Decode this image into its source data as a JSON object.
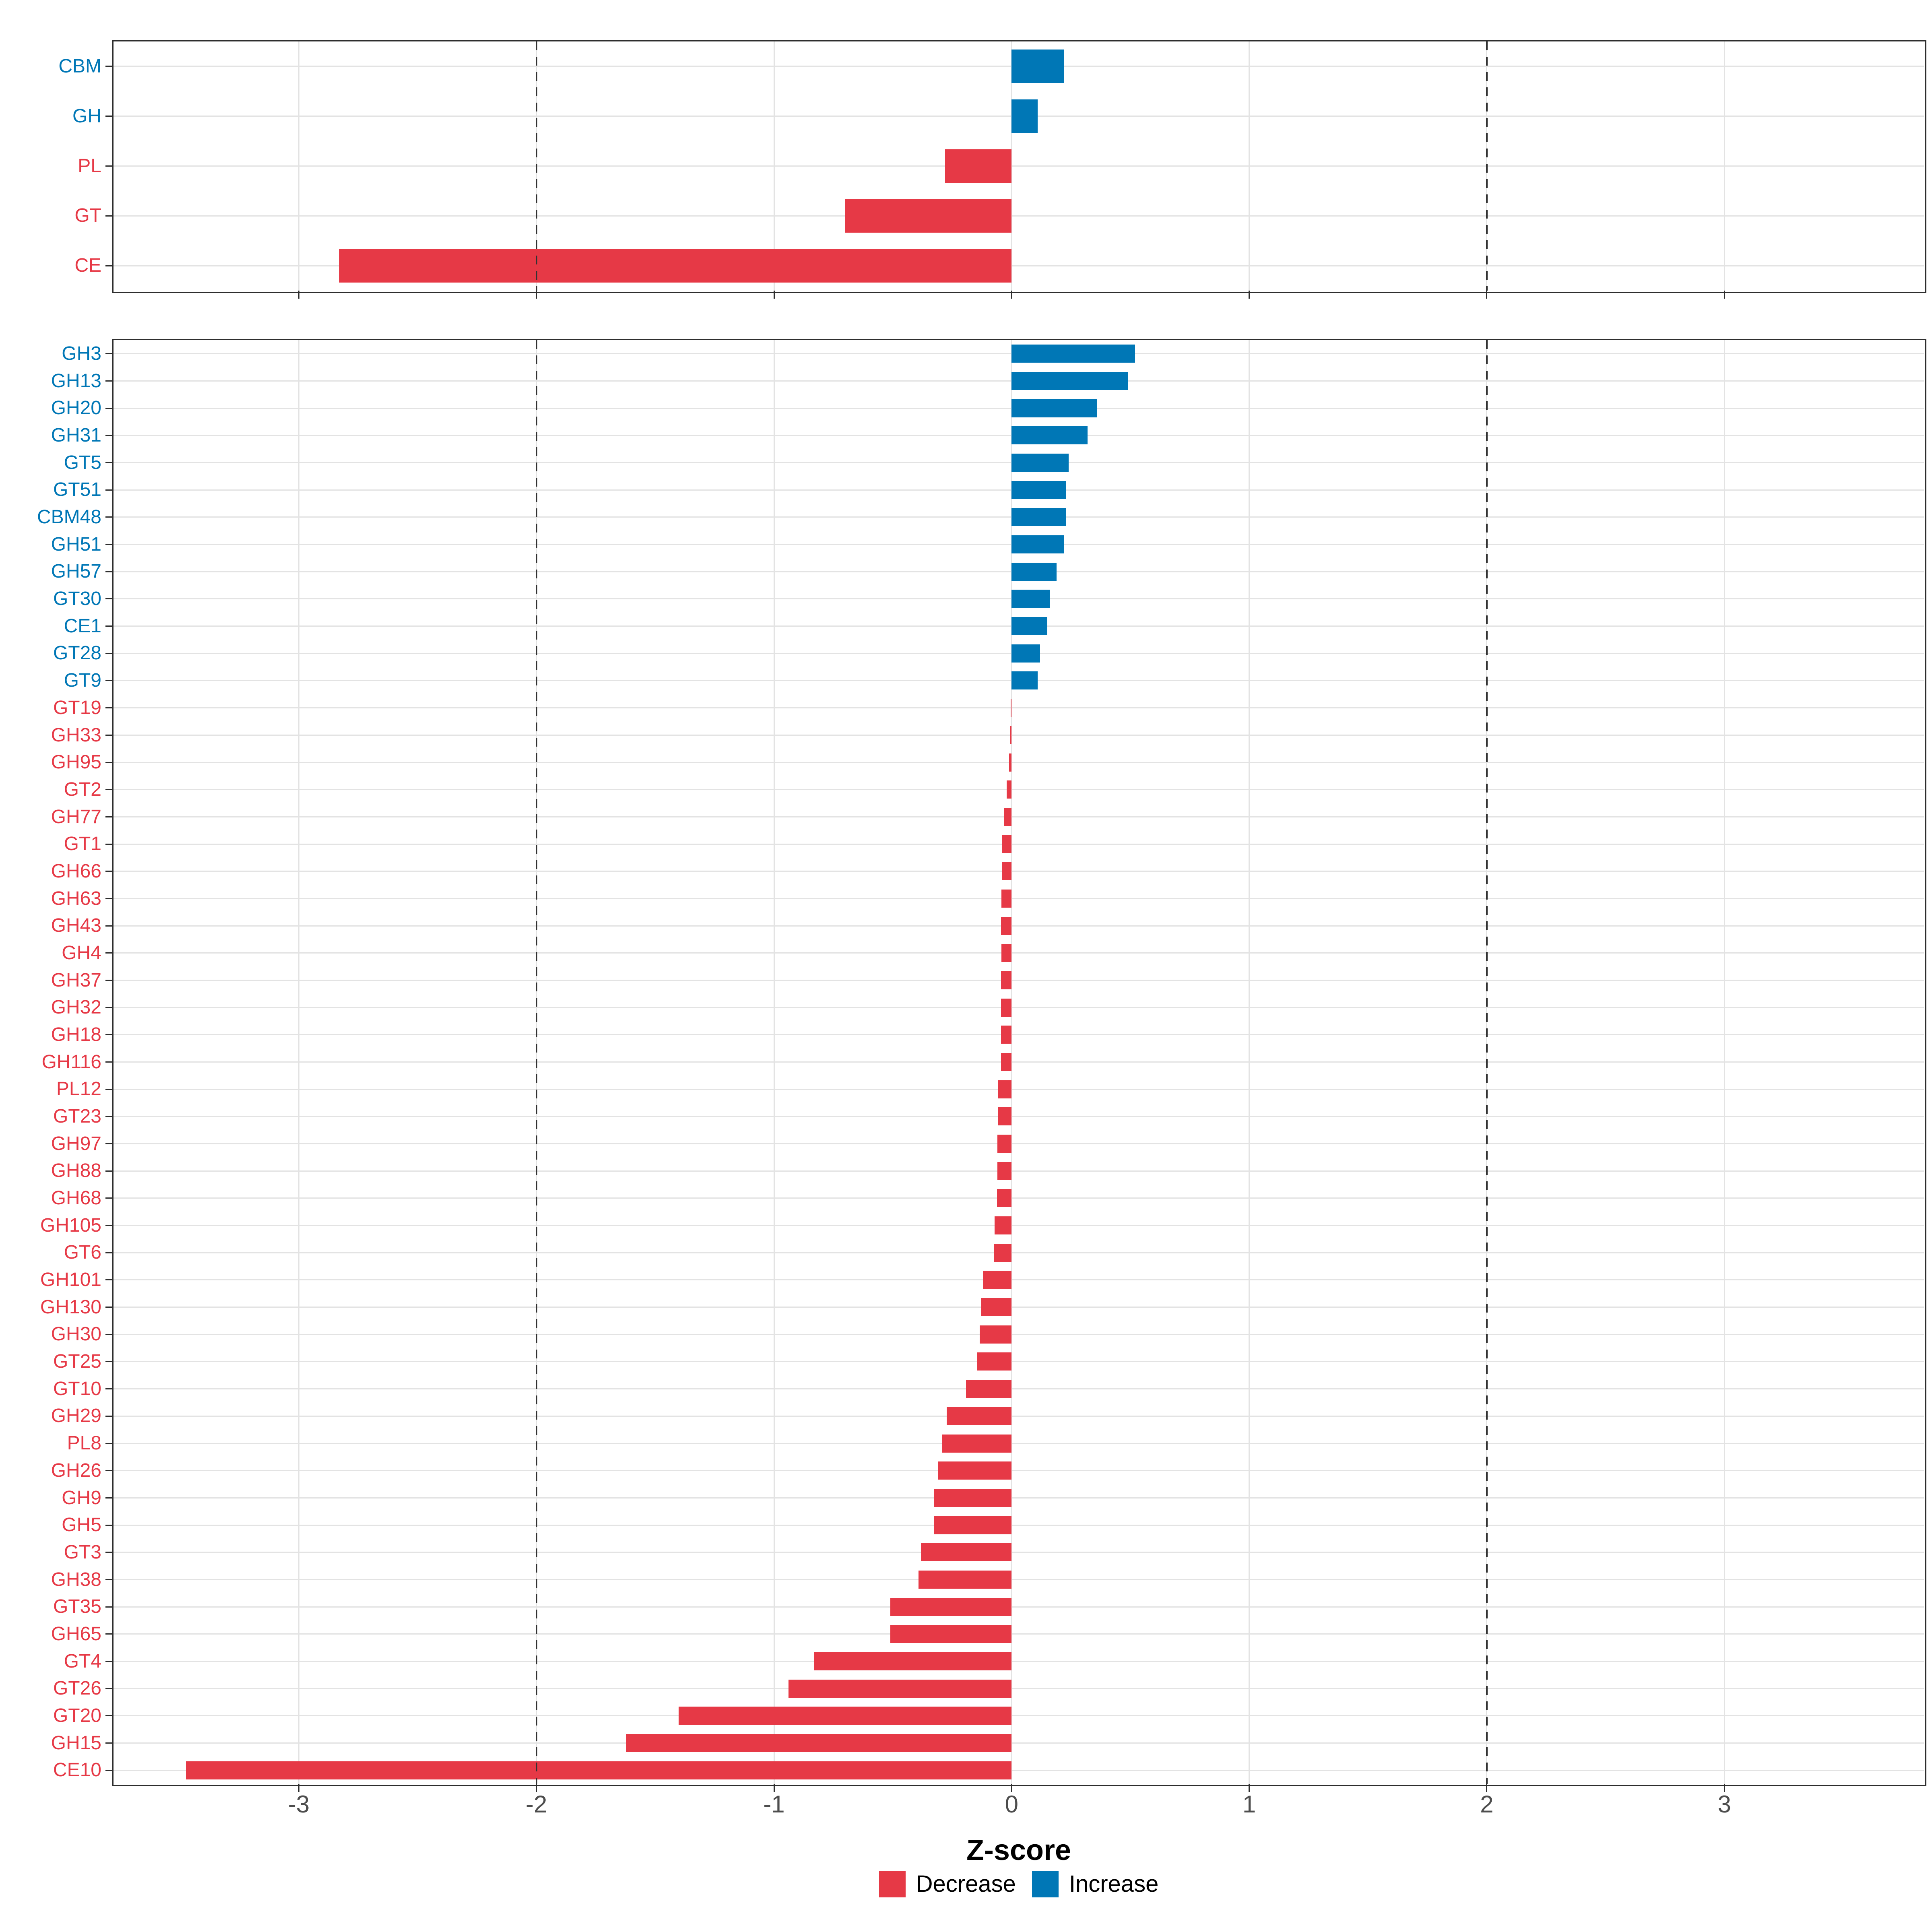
{
  "figure": {
    "xlabel": "Z-score",
    "style": {
      "decrease_color": "#e63946",
      "increase_color": "#0077b6",
      "grid_color": "#e3e3e3",
      "panel_border_color": "#2e2e2e",
      "tick_label_color": "#4d4d4d",
      "dashed_line_color": "#333333",
      "background": "#ffffff"
    },
    "legend": {
      "items": [
        {
          "label": "Decrease",
          "color": "#e63946"
        },
        {
          "label": "Increase",
          "color": "#0077b6"
        }
      ]
    }
  },
  "chart_data": [
    {
      "type": "bar",
      "orientation": "horizontal",
      "panel": "top",
      "xlabel": "Z-score",
      "ylabel": "",
      "xlim": [
        -3.78,
        3.84
      ],
      "xticks": [
        -3,
        -2,
        -1,
        0,
        1,
        2,
        3
      ],
      "xtick_labels_shown": false,
      "dashed_vlines": [
        -2,
        2
      ],
      "grid": true,
      "legend_position": "bottom",
      "rows": [
        {
          "label": "CBM",
          "value": 0.22,
          "group": "Increase"
        },
        {
          "label": "GH",
          "value": 0.11,
          "group": "Increase"
        },
        {
          "label": "PL",
          "value": -0.28,
          "group": "Decrease"
        },
        {
          "label": "GT",
          "value": -0.7,
          "group": "Decrease"
        },
        {
          "label": "CE",
          "value": -2.83,
          "group": "Decrease"
        }
      ]
    },
    {
      "type": "bar",
      "orientation": "horizontal",
      "panel": "bottom",
      "xlabel": "Z-score",
      "ylabel": "",
      "xlim": [
        -3.78,
        3.84
      ],
      "xticks": [
        -3,
        -2,
        -1,
        0,
        1,
        2,
        3
      ],
      "xtick_labels_shown": true,
      "dashed_vlines": [
        -2,
        2
      ],
      "grid": true,
      "legend_position": "bottom",
      "rows": [
        {
          "label": "GH3",
          "value": 0.52,
          "group": "Increase"
        },
        {
          "label": "GH13",
          "value": 0.49,
          "group": "Increase"
        },
        {
          "label": "GH20",
          "value": 0.36,
          "group": "Increase"
        },
        {
          "label": "GH31",
          "value": 0.32,
          "group": "Increase"
        },
        {
          "label": "GT5",
          "value": 0.24,
          "group": "Increase"
        },
        {
          "label": "GT51",
          "value": 0.23,
          "group": "Increase"
        },
        {
          "label": "CBM48",
          "value": 0.23,
          "group": "Increase"
        },
        {
          "label": "GH51",
          "value": 0.22,
          "group": "Increase"
        },
        {
          "label": "GH57",
          "value": 0.19,
          "group": "Increase"
        },
        {
          "label": "GT30",
          "value": 0.16,
          "group": "Increase"
        },
        {
          "label": "CE1",
          "value": 0.15,
          "group": "Increase"
        },
        {
          "label": "GT28",
          "value": 0.12,
          "group": "Increase"
        },
        {
          "label": "GT9",
          "value": 0.11,
          "group": "Increase"
        },
        {
          "label": "GT19",
          "value": -0.004,
          "group": "Decrease"
        },
        {
          "label": "GH33",
          "value": -0.007,
          "group": "Decrease"
        },
        {
          "label": "GH95",
          "value": -0.011,
          "group": "Decrease"
        },
        {
          "label": "GT2",
          "value": -0.021,
          "group": "Decrease"
        },
        {
          "label": "GH77",
          "value": -0.031,
          "group": "Decrease"
        },
        {
          "label": "GT1",
          "value": -0.041,
          "group": "Decrease"
        },
        {
          "label": "GH66",
          "value": -0.041,
          "group": "Decrease"
        },
        {
          "label": "GH63",
          "value": -0.042,
          "group": "Decrease"
        },
        {
          "label": "GH43",
          "value": -0.044,
          "group": "Decrease"
        },
        {
          "label": "GH4",
          "value": -0.042,
          "group": "Decrease"
        },
        {
          "label": "GH37",
          "value": -0.044,
          "group": "Decrease"
        },
        {
          "label": "GH32",
          "value": -0.044,
          "group": "Decrease"
        },
        {
          "label": "GH18",
          "value": -0.044,
          "group": "Decrease"
        },
        {
          "label": "GH116",
          "value": -0.045,
          "group": "Decrease"
        },
        {
          "label": "PL12",
          "value": -0.057,
          "group": "Decrease"
        },
        {
          "label": "GT23",
          "value": -0.058,
          "group": "Decrease"
        },
        {
          "label": "GH97",
          "value": -0.059,
          "group": "Decrease"
        },
        {
          "label": "GH88",
          "value": -0.06,
          "group": "Decrease"
        },
        {
          "label": "GH68",
          "value": -0.061,
          "group": "Decrease"
        },
        {
          "label": "GH105",
          "value": -0.071,
          "group": "Decrease"
        },
        {
          "label": "GT6",
          "value": -0.074,
          "group": "Decrease"
        },
        {
          "label": "GH101",
          "value": -0.12,
          "group": "Decrease"
        },
        {
          "label": "GH130",
          "value": -0.127,
          "group": "Decrease"
        },
        {
          "label": "GH30",
          "value": -0.134,
          "group": "Decrease"
        },
        {
          "label": "GT25",
          "value": -0.145,
          "group": "Decrease"
        },
        {
          "label": "GT10",
          "value": -0.192,
          "group": "Decrease"
        },
        {
          "label": "GH29",
          "value": -0.274,
          "group": "Decrease"
        },
        {
          "label": "PL8",
          "value": -0.294,
          "group": "Decrease"
        },
        {
          "label": "GH26",
          "value": -0.31,
          "group": "Decrease"
        },
        {
          "label": "GH9",
          "value": -0.327,
          "group": "Decrease"
        },
        {
          "label": "GH5",
          "value": -0.327,
          "group": "Decrease"
        },
        {
          "label": "GT3",
          "value": -0.382,
          "group": "Decrease"
        },
        {
          "label": "GH38",
          "value": -0.391,
          "group": "Decrease"
        },
        {
          "label": "GT35",
          "value": -0.511,
          "group": "Decrease"
        },
        {
          "label": "GH65",
          "value": -0.511,
          "group": "Decrease"
        },
        {
          "label": "GT4",
          "value": -0.832,
          "group": "Decrease"
        },
        {
          "label": "GT26",
          "value": -0.939,
          "group": "Decrease"
        },
        {
          "label": "GT20",
          "value": -1.402,
          "group": "Decrease"
        },
        {
          "label": "GH15",
          "value": -1.623,
          "group": "Decrease"
        },
        {
          "label": "CE10",
          "value": -3.475,
          "group": "Decrease"
        }
      ]
    }
  ]
}
